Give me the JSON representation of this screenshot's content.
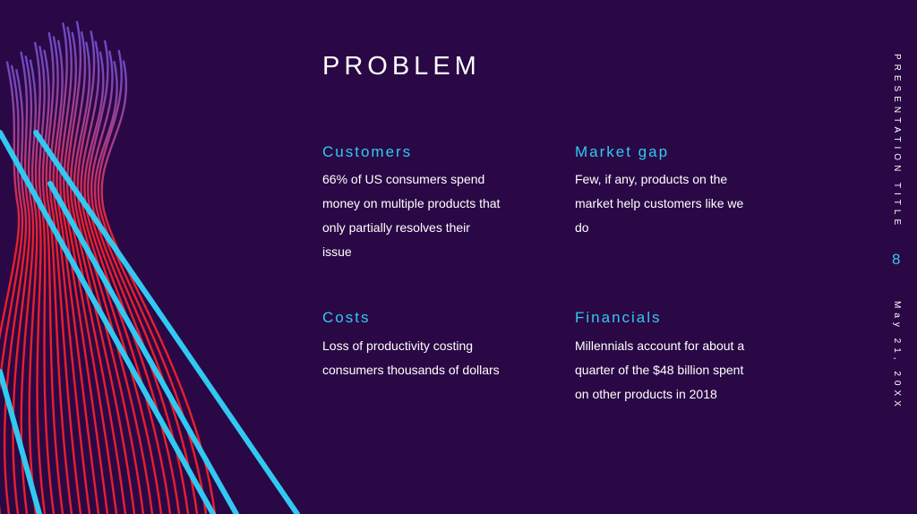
{
  "slide": {
    "title": "PROBLEM",
    "presentation_title": "PRESENTATION TITLE",
    "page_number": "8",
    "date": "May 21, 20XX"
  },
  "sections": {
    "customers": {
      "heading": "Customers",
      "body": "66% of US consumers spend money on multiple products that only partially resolves their issue"
    },
    "market_gap": {
      "heading": "Market gap",
      "body": "Few, if any, products on the market help customers like we do"
    },
    "costs": {
      "heading": "Costs",
      "body": "Loss of productivity costing consumers thousands of dollars"
    },
    "financials": {
      "heading": "Financials",
      "body": "Millennials account for about a quarter of the $48 billion spent on other products in 2018"
    }
  },
  "colors": {
    "background": "#2a0845",
    "accent": "#31c9f1",
    "line_red": "#e8202a",
    "line_purple": "#6a4bc4"
  }
}
